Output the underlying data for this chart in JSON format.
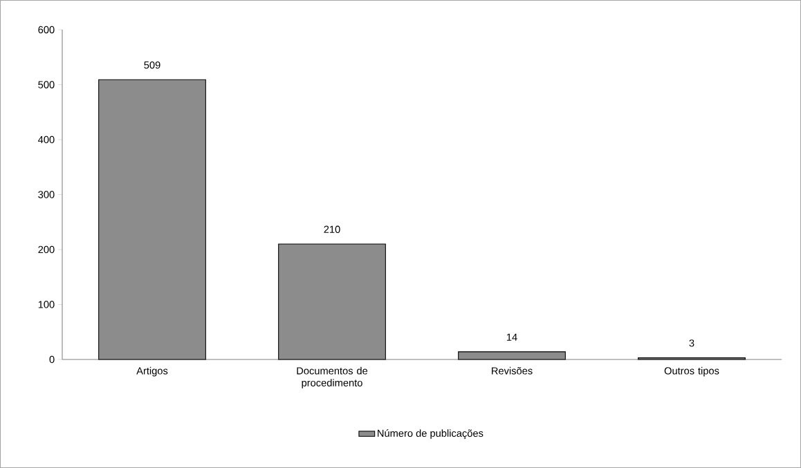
{
  "chart_data": {
    "type": "bar",
    "categories": [
      "Artigos",
      "Documentos de procedimento",
      "Revisões",
      "Outros tipos"
    ],
    "series": [
      {
        "name": "Número de publicações",
        "color": "#8c8c8c",
        "values": [
          509,
          210,
          14,
          3
        ]
      }
    ],
    "ylim": [
      0,
      600
    ],
    "yticks": [
      0,
      100,
      200,
      300,
      400,
      500,
      600
    ],
    "grid": false,
    "legend": "bottom",
    "data_labels": true
  }
}
